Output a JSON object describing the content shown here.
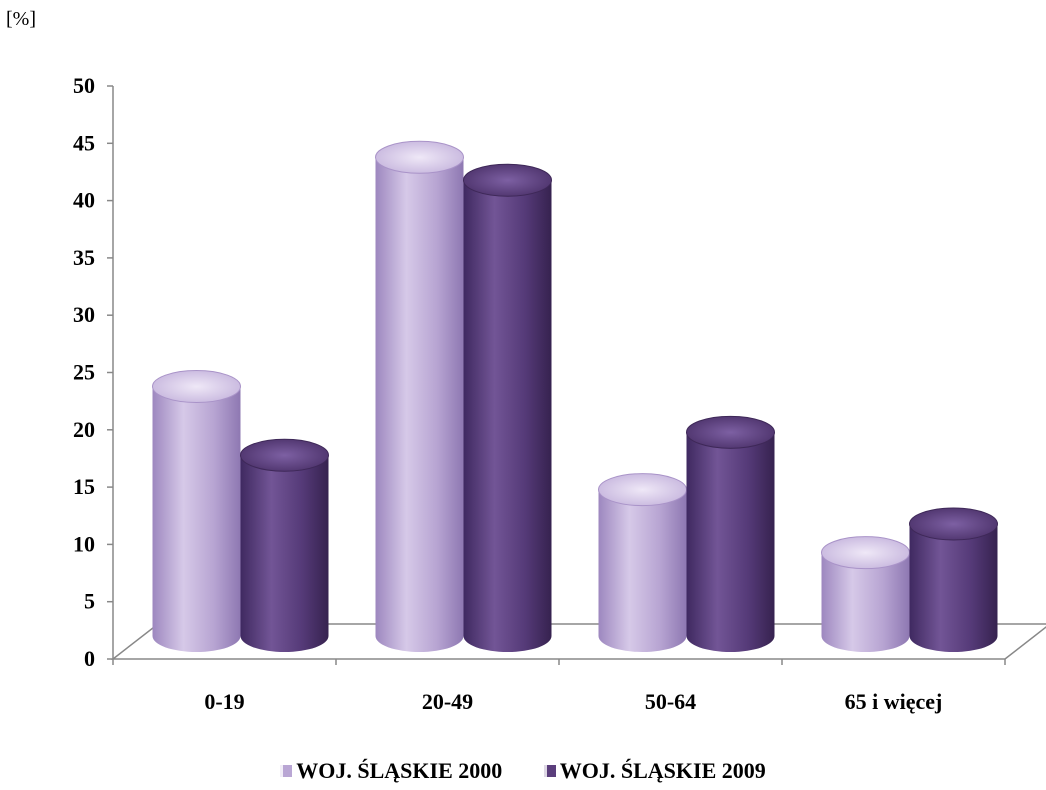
{
  "chart_data": {
    "type": "bar",
    "unit_label": "[%]",
    "categories": [
      "0-19",
      "20-49",
      "50-64",
      "65 i więcej"
    ],
    "series": [
      {
        "name": "WOJ. ŚLĄSKIE 2000",
        "color": "#b9a6d4",
        "values": [
          25,
          45,
          16,
          10.5
        ]
      },
      {
        "name": "WOJ. ŚLĄSKIE 2009",
        "color": "#5b3e7c",
        "values": [
          19,
          43,
          21,
          13
        ]
      }
    ],
    "y_ticks": [
      "0",
      "5",
      "10",
      "15",
      "20",
      "25",
      "30",
      "35",
      "40",
      "45",
      "50"
    ],
    "ylim": [
      0,
      50
    ],
    "legend_position": "bottom",
    "grid": false
  }
}
